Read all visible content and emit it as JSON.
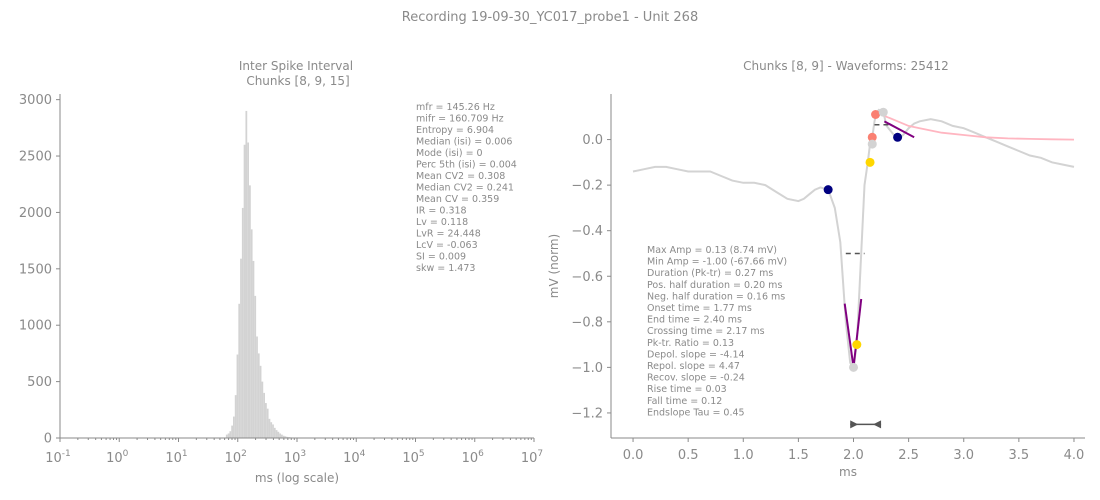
{
  "suptitle": "Recording 19-09-30_YC017_probe1 - Unit 268",
  "isi": {
    "title_line1": "Inter Spike Interval",
    "title_line2": "Chunks [8, 9, 15]",
    "xlabel": "ms (log scale)",
    "yticks": [
      "0",
      "500",
      "1000",
      "1500",
      "2000",
      "2500",
      "3000"
    ],
    "stats": [
      "mfr = 145.26 Hz",
      "mifr = 160.709 Hz",
      "Entropy = 6.904",
      "Median (isi) = 0.006",
      "Mode (isi) = 0",
      "Perc 5th (isi) = 0.004",
      "Mean CV2 = 0.308",
      "Median CV2 = 0.241",
      "Mean CV = 0.359",
      "IR = 0.318",
      "Lv = 0.118",
      "LvR = 24.448",
      "LcV = -0.063",
      "SI = 0.009",
      "skw = 1.473"
    ]
  },
  "wave": {
    "title": "Chunks [8, 9] - Waveforms: 25412",
    "xlabel": "ms",
    "ylabel": "mV (norm)",
    "xticks": [
      "0.0",
      "0.5",
      "1.0",
      "1.5",
      "2.0",
      "2.5",
      "3.0",
      "3.5",
      "4.0"
    ],
    "yticks": [
      "0.0",
      "−0.2",
      "−0.4",
      "−0.6",
      "−0.8",
      "−1.0",
      "−1.2"
    ],
    "stats": [
      "Max Amp = 0.13 (8.74 mV)",
      "Min Amp = -1.00 (-67.66 mV)",
      "Duration (Pk-tr) = 0.27 ms",
      "Pos. half duration = 0.20 ms",
      "Neg. half duration = 0.16 ms",
      "Onset time = 1.77 ms",
      "End time = 2.40 ms",
      "Crossing time = 2.17 ms",
      "Pk-tr. Ratio = 0.13",
      "Depol. slope = -4.14",
      "Repol. slope = 4.47",
      "Recov. slope = -0.24",
      "Rise time = 0.03",
      "Fall time = 0.12",
      "Endslope Tau = 0.45"
    ]
  },
  "colors": {
    "axis": "#8a8a8a",
    "hist_bar": "#d3d3d3",
    "waveform": "#d3d3d3",
    "fit_curve": "#ffb6c1",
    "slope_line": "#800080",
    "navy_marker": "#000080",
    "gold_marker": "#ffd700",
    "salmon_marker": "#fa8072",
    "grey_marker": "#d3d3d3",
    "bracket": "#555555"
  },
  "chart_data": [
    {
      "type": "bar",
      "x_scale": "log",
      "xlim": [
        0.1,
        10000000
      ],
      "ylim": [
        0,
        3050
      ],
      "bins_log10_ms": [
        1.8,
        1.83,
        1.86,
        1.89,
        1.92,
        1.95,
        1.98,
        2.01,
        2.04,
        2.07,
        2.1,
        2.13,
        2.16,
        2.19,
        2.22,
        2.25,
        2.28,
        2.31,
        2.34,
        2.37,
        2.4,
        2.43,
        2.46,
        2.49,
        2.52,
        2.55,
        2.58,
        2.61,
        2.64,
        2.67,
        2.7,
        2.73,
        2.76,
        2.79,
        2.82,
        2.85,
        2.88,
        2.91
      ],
      "counts": [
        30,
        40,
        60,
        110,
        190,
        380,
        740,
        1190,
        1590,
        2040,
        2600,
        2900,
        2620,
        2240,
        1850,
        1570,
        1260,
        900,
        750,
        640,
        500,
        400,
        310,
        260,
        170,
        140,
        120,
        90,
        70,
        55,
        40,
        30,
        20,
        15,
        10,
        8,
        6,
        4
      ]
    },
    {
      "type": "line",
      "xlim": [
        -0.2,
        4.1
      ],
      "ylim": [
        -1.31,
        0.2
      ],
      "series": [
        {
          "role": "waveform",
          "x": [
            0.0,
            0.1,
            0.2,
            0.3,
            0.4,
            0.5,
            0.6,
            0.7,
            0.8,
            0.9,
            1.0,
            1.1,
            1.2,
            1.3,
            1.4,
            1.5,
            1.55,
            1.6,
            1.65,
            1.7,
            1.77,
            1.83,
            1.88,
            1.93,
            1.97,
            2.0,
            2.03,
            2.07,
            2.1,
            2.13,
            2.15,
            2.17,
            2.19,
            2.21,
            2.23,
            2.27,
            2.3,
            2.35,
            2.4,
            2.45,
            2.5,
            2.55,
            2.6,
            2.7,
            2.8,
            2.9,
            3.0,
            3.1,
            3.2,
            3.3,
            3.4,
            3.5,
            3.6,
            3.7,
            3.8,
            3.9,
            4.0
          ],
          "y": [
            -0.14,
            -0.13,
            -0.12,
            -0.12,
            -0.13,
            -0.14,
            -0.14,
            -0.14,
            -0.16,
            -0.18,
            -0.19,
            -0.19,
            -0.2,
            -0.23,
            -0.26,
            -0.27,
            -0.26,
            -0.24,
            -0.22,
            -0.21,
            -0.22,
            -0.3,
            -0.45,
            -0.8,
            -0.98,
            -1.0,
            -0.9,
            -0.5,
            -0.2,
            -0.1,
            -0.02,
            0.01,
            0.08,
            0.12,
            0.13,
            0.12,
            0.06,
            0.03,
            0.0,
            0.02,
            0.05,
            0.07,
            0.08,
            0.09,
            0.08,
            0.06,
            0.05,
            0.03,
            0.01,
            -0.01,
            -0.03,
            -0.05,
            -0.07,
            -0.08,
            -0.1,
            -0.11,
            -0.12
          ]
        },
        {
          "role": "endslope-fit",
          "x": [
            2.23,
            2.3,
            2.4,
            2.5,
            2.6,
            2.8,
            3.0,
            3.2,
            3.4,
            3.6,
            3.8,
            4.0
          ],
          "y": [
            0.12,
            0.1,
            0.08,
            0.06,
            0.05,
            0.03,
            0.02,
            0.01,
            0.005,
            0.003,
            0.001,
            0.0
          ]
        }
      ],
      "slope_lines": [
        {
          "x": [
            1.92,
            2.0
          ],
          "y": [
            -0.72,
            -1.0
          ]
        },
        {
          "x": [
            2.0,
            2.07
          ],
          "y": [
            -1.0,
            -0.7
          ]
        },
        {
          "x": [
            2.28,
            2.55
          ],
          "y": [
            0.08,
            0.01
          ]
        }
      ],
      "markers": [
        {
          "x": 1.77,
          "y": -0.22,
          "color": "navy"
        },
        {
          "x": 2.4,
          "y": 0.01,
          "color": "navy"
        },
        {
          "x": 2.15,
          "y": -0.1,
          "color": "gold"
        },
        {
          "x": 2.03,
          "y": -0.9,
          "color": "gold"
        },
        {
          "x": 2.2,
          "y": 0.11,
          "color": "salmon"
        },
        {
          "x": 2.17,
          "y": 0.01,
          "color": "salmon"
        },
        {
          "x": 2.27,
          "y": 0.12,
          "color": "grey"
        },
        {
          "x": 2.17,
          "y": -0.02,
          "color": "grey"
        },
        {
          "x": 2.0,
          "y": -1.0,
          "color": "grey"
        }
      ],
      "dashed_segments": [
        {
          "x": [
            1.93,
            2.1
          ],
          "y": [
            -0.5,
            -0.5
          ]
        },
        {
          "x": [
            2.19,
            2.35
          ],
          "y": [
            0.065,
            0.065
          ]
        }
      ],
      "duration_bracket": {
        "x": [
          1.97,
          2.25
        ],
        "y": -1.25
      }
    }
  ]
}
